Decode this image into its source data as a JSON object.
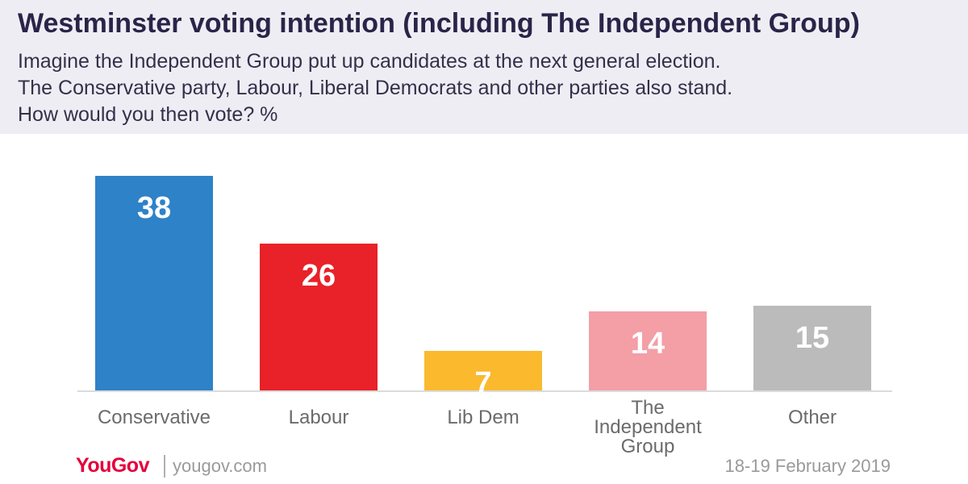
{
  "header": {
    "title": "Westminster voting intention (including The Independent Group)",
    "subtitle_lines": [
      "Imagine the Independent Group put up candidates at the next general election.",
      "The Conservative party, Labour, Liberal Democrats and other parties also stand.",
      "How would you then vote? %"
    ]
  },
  "chart_data": {
    "type": "bar",
    "title": "Westminster voting intention (including The Independent Group)",
    "subtitle": "Imagine the Independent Group put up candidates at the next general election. The Conservative party, Labour, Liberal Democrats and other parties also stand. How would you then vote? %",
    "xlabel": "",
    "ylabel": "",
    "grid": false,
    "legend": "none",
    "categories": [
      "Conservative",
      "Labour",
      "Lib Dem",
      "The Independent Group",
      "Other"
    ],
    "category_label_lines": [
      [
        "Conservative"
      ],
      [
        "Labour"
      ],
      [
        "Lib Dem"
      ],
      [
        "The",
        "Independent",
        "Group"
      ],
      [
        "Other"
      ]
    ],
    "values": [
      38,
      26,
      7,
      14,
      15
    ],
    "data_labels": [
      "38",
      "26",
      "7",
      "14",
      "15"
    ],
    "colors": [
      "#2e82c8",
      "#e92128",
      "#fbb92e",
      "#f49ea6",
      "#bcbbbc"
    ],
    "ylim": [
      0,
      40
    ]
  },
  "footer": {
    "logo_text": "YouGov",
    "site": "yougov.com",
    "date": "18-19 February 2019"
  }
}
